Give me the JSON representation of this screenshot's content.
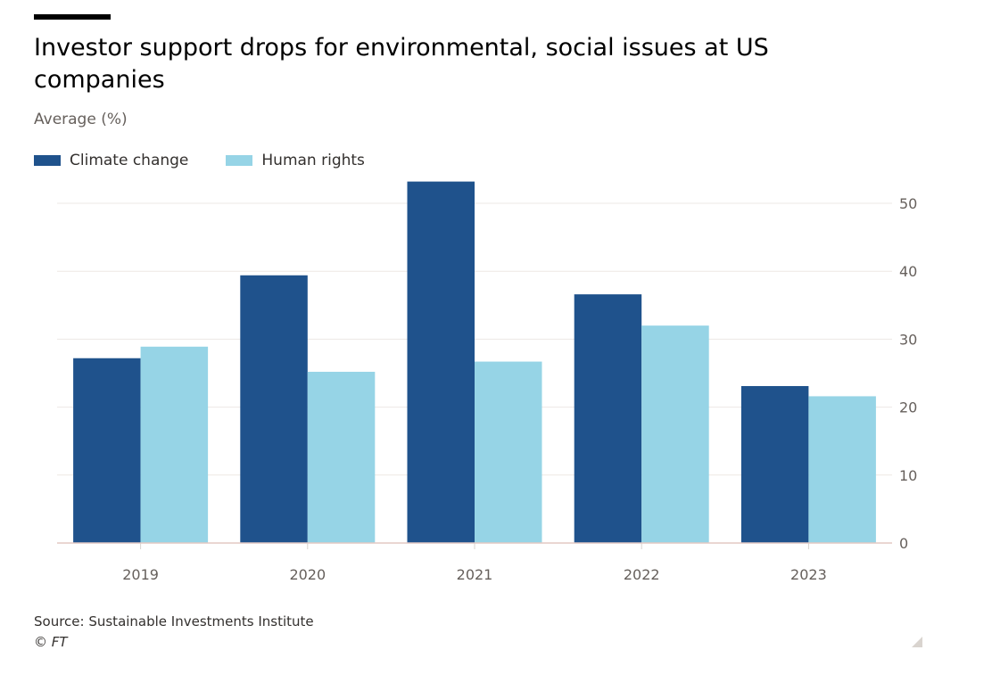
{
  "chart_data": {
    "type": "bar",
    "title": "Investor support drops for environmental, social issues at US companies",
    "subtitle": "Average (%)",
    "categories": [
      "2019",
      "2020",
      "2021",
      "2022",
      "2023"
    ],
    "series": [
      {
        "name": "Climate change",
        "color": "#1f528c",
        "values": [
          27.2,
          39.4,
          53.2,
          36.6,
          23.1
        ]
      },
      {
        "name": "Human rights",
        "color": "#96d4e6",
        "values": [
          28.9,
          25.2,
          26.7,
          32.0,
          21.6
        ]
      }
    ],
    "ylim": [
      0,
      50
    ],
    "yticks": [
      0,
      10,
      20,
      30,
      40,
      50
    ],
    "grid": true,
    "y_axis_position": "right",
    "legend_position": "top-left"
  },
  "source": "Source: Sustainable Investments Institute",
  "copyright": "© FT"
}
